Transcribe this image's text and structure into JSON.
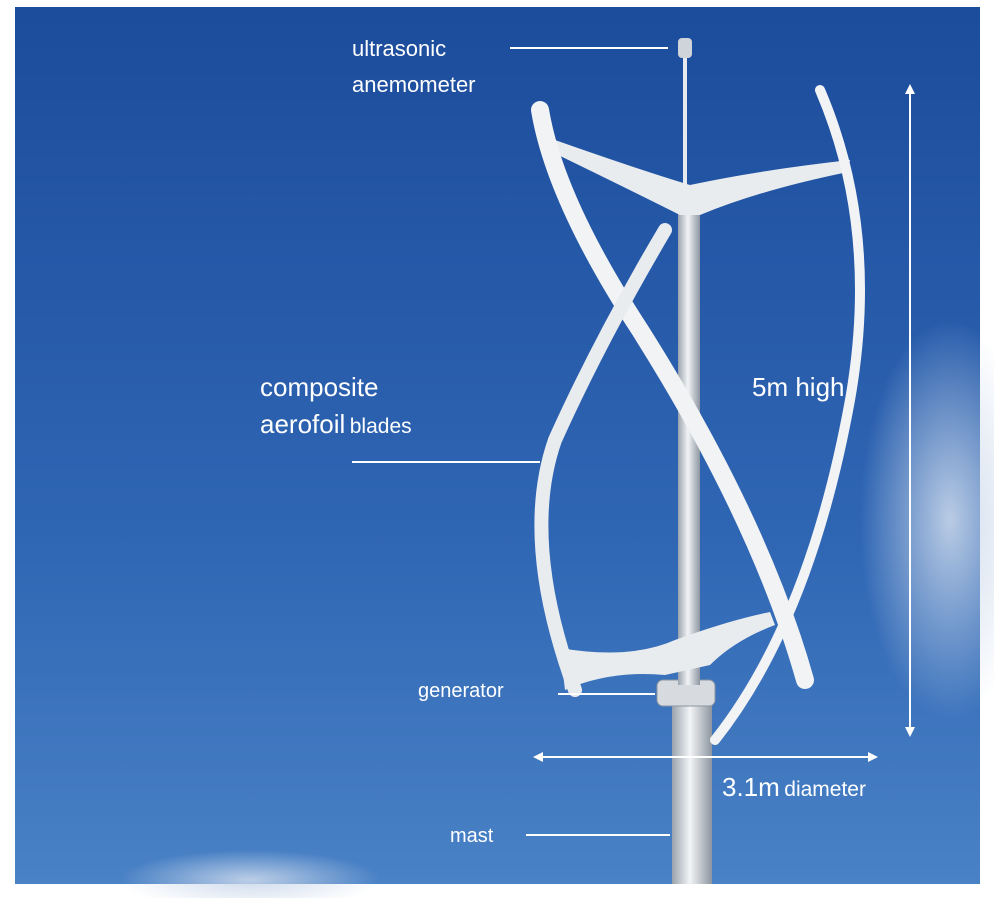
{
  "labels": {
    "anemometer": [
      "ultrasonic",
      "anemometer"
    ],
    "blades": [
      "composite",
      "aerofoil",
      "blades"
    ],
    "height": "5m high",
    "generator": "generator",
    "diameter": [
      "3.1m",
      "diameter"
    ],
    "mast": "mast"
  }
}
